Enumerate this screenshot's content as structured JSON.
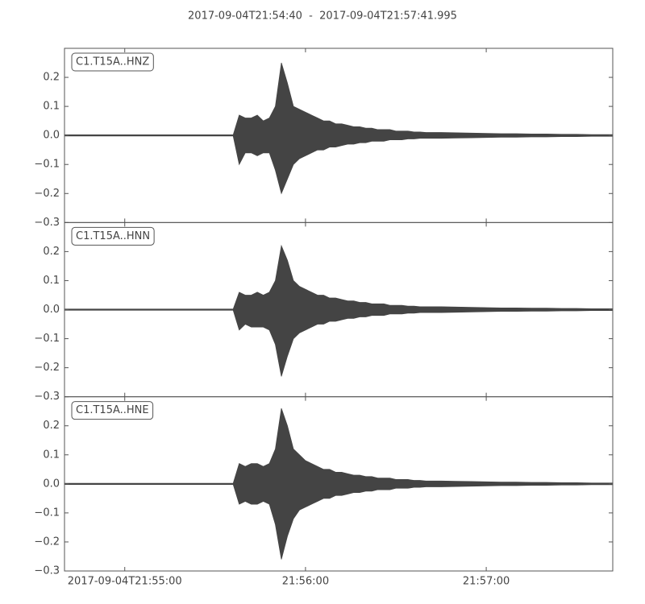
{
  "chart_data": {
    "type": "seismogram",
    "title": "2017-09-04T21:54:40  -  2017-09-04T21:57:41.995",
    "color": "#444444",
    "xlim": [
      "2017-09-04T21:54:40",
      "2017-09-04T21:57:41.995"
    ],
    "xticks": [
      "2017-09-04T21:55:00",
      {
        "value": "2017-09-04T21:56:00",
        "label": "21:56:00"
      },
      {
        "value": "2017-09-04T21:57:00",
        "label": "21:57:00"
      }
    ],
    "x": [
      "2017-09-04T21:54:40",
      "2017-09-04T21:54:55",
      "2017-09-04T21:55:10",
      "2017-09-04T21:55:25",
      "2017-09-04T21:55:36",
      "2017-09-04T21:55:38",
      "2017-09-04T21:55:40",
      "2017-09-04T21:55:42",
      "2017-09-04T21:55:44",
      "2017-09-04T21:55:46",
      "2017-09-04T21:55:48",
      "2017-09-04T21:55:50",
      "2017-09-04T21:55:52",
      "2017-09-04T21:55:54",
      "2017-09-04T21:55:56",
      "2017-09-04T21:55:58",
      "2017-09-04T21:56:00",
      "2017-09-04T21:56:02",
      "2017-09-04T21:56:04",
      "2017-09-04T21:56:06",
      "2017-09-04T21:56:08",
      "2017-09-04T21:56:10",
      "2017-09-04T21:56:12",
      "2017-09-04T21:56:14",
      "2017-09-04T21:56:16",
      "2017-09-04T21:56:18",
      "2017-09-04T21:56:20",
      "2017-09-04T21:56:22",
      "2017-09-04T21:56:24",
      "2017-09-04T21:56:26",
      "2017-09-04T21:56:28",
      "2017-09-04T21:56:30",
      "2017-09-04T21:56:32",
      "2017-09-04T21:56:34",
      "2017-09-04T21:56:36",
      "2017-09-04T21:56:38",
      "2017-09-04T21:56:40",
      "2017-09-04T21:56:45",
      "2017-09-04T21:56:50",
      "2017-09-04T21:56:55",
      "2017-09-04T21:57:00",
      "2017-09-04T21:57:05",
      "2017-09-04T21:57:10",
      "2017-09-04T21:57:15",
      "2017-09-04T21:57:20",
      "2017-09-04T21:57:25",
      "2017-09-04T21:57:30",
      "2017-09-04T21:57:35",
      "2017-09-04T21:57:40",
      "2017-09-04T21:57:41.995"
    ],
    "panels": [
      {
        "label": "C1.T15A..HNZ",
        "ylim": [
          -0.3,
          0.3
        ],
        "yticks": [
          {
            "value": -0.3,
            "label": "−0.3"
          },
          {
            "value": -0.2,
            "label": "−0.2"
          },
          {
            "value": -0.1,
            "label": "−0.1"
          },
          {
            "value": 0,
            "label": "0.0"
          },
          0.1,
          0.2
        ],
        "max": [
          0.002,
          0.002,
          0.002,
          0.002,
          0.002,
          0.07,
          0.06,
          0.06,
          0.07,
          0.05,
          0.06,
          0.1,
          0.25,
          0.18,
          0.1,
          0.09,
          0.08,
          0.07,
          0.06,
          0.05,
          0.05,
          0.04,
          0.04,
          0.035,
          0.03,
          0.03,
          0.025,
          0.025,
          0.02,
          0.02,
          0.02,
          0.015,
          0.015,
          0.015,
          0.012,
          0.012,
          0.01,
          0.01,
          0.009,
          0.008,
          0.007,
          0.006,
          0.006,
          0.005,
          0.005,
          0.004,
          0.004,
          0.003,
          0.003,
          0.003
        ],
        "min": [
          -0.002,
          -0.002,
          -0.002,
          -0.002,
          -0.002,
          -0.1,
          -0.06,
          -0.06,
          -0.07,
          -0.06,
          -0.06,
          -0.12,
          -0.2,
          -0.15,
          -0.1,
          -0.08,
          -0.07,
          -0.06,
          -0.05,
          -0.05,
          -0.04,
          -0.04,
          -0.035,
          -0.03,
          -0.03,
          -0.025,
          -0.025,
          -0.02,
          -0.02,
          -0.02,
          -0.015,
          -0.015,
          -0.015,
          -0.012,
          -0.012,
          -0.01,
          -0.01,
          -0.01,
          -0.009,
          -0.008,
          -0.007,
          -0.006,
          -0.006,
          -0.005,
          -0.005,
          -0.004,
          -0.004,
          -0.003,
          -0.003,
          -0.003
        ]
      },
      {
        "label": "C1.T15A..HNN",
        "ylim": [
          -0.3,
          0.3
        ],
        "yticks": [
          {
            "value": -0.3,
            "label": "−0.3"
          },
          {
            "value": -0.2,
            "label": "−0.2"
          },
          {
            "value": -0.1,
            "label": "−0.1"
          },
          {
            "value": 0,
            "label": "0.0"
          },
          0.1,
          0.2
        ],
        "max": [
          0.002,
          0.002,
          0.002,
          0.002,
          0.002,
          0.06,
          0.05,
          0.05,
          0.06,
          0.05,
          0.06,
          0.1,
          0.22,
          0.17,
          0.1,
          0.08,
          0.07,
          0.06,
          0.05,
          0.05,
          0.04,
          0.04,
          0.035,
          0.03,
          0.03,
          0.025,
          0.025,
          0.02,
          0.02,
          0.02,
          0.015,
          0.015,
          0.015,
          0.012,
          0.012,
          0.01,
          0.01,
          0.01,
          0.009,
          0.008,
          0.007,
          0.006,
          0.006,
          0.005,
          0.005,
          0.004,
          0.004,
          0.003,
          0.003,
          0.003
        ],
        "min": [
          -0.002,
          -0.002,
          -0.002,
          -0.002,
          -0.002,
          -0.07,
          -0.05,
          -0.06,
          -0.06,
          -0.06,
          -0.07,
          -0.12,
          -0.23,
          -0.16,
          -0.1,
          -0.08,
          -0.07,
          -0.06,
          -0.05,
          -0.05,
          -0.04,
          -0.04,
          -0.035,
          -0.03,
          -0.03,
          -0.025,
          -0.025,
          -0.02,
          -0.02,
          -0.02,
          -0.015,
          -0.015,
          -0.015,
          -0.012,
          -0.012,
          -0.01,
          -0.01,
          -0.01,
          -0.009,
          -0.008,
          -0.007,
          -0.006,
          -0.006,
          -0.005,
          -0.005,
          -0.004,
          -0.004,
          -0.003,
          -0.003,
          -0.003
        ]
      },
      {
        "label": "C1.T15A..HNE",
        "ylim": [
          -0.3,
          0.3
        ],
        "yticks": [
          {
            "value": -0.3,
            "label": "−0.3"
          },
          {
            "value": -0.2,
            "label": "−0.2"
          },
          {
            "value": -0.1,
            "label": "−0.1"
          },
          {
            "value": 0,
            "label": "0.0"
          },
          0.1,
          0.2
        ],
        "max": [
          0.002,
          0.002,
          0.002,
          0.002,
          0.002,
          0.07,
          0.06,
          0.07,
          0.07,
          0.06,
          0.07,
          0.12,
          0.26,
          0.2,
          0.12,
          0.1,
          0.08,
          0.07,
          0.06,
          0.05,
          0.05,
          0.04,
          0.04,
          0.035,
          0.03,
          0.03,
          0.025,
          0.025,
          0.02,
          0.02,
          0.02,
          0.015,
          0.015,
          0.015,
          0.012,
          0.012,
          0.01,
          0.01,
          0.009,
          0.008,
          0.007,
          0.006,
          0.006,
          0.005,
          0.005,
          0.004,
          0.004,
          0.003,
          0.003,
          0.003
        ],
        "min": [
          -0.002,
          -0.002,
          -0.002,
          -0.002,
          -0.002,
          -0.07,
          -0.06,
          -0.07,
          -0.07,
          -0.06,
          -0.07,
          -0.14,
          -0.26,
          -0.18,
          -0.12,
          -0.09,
          -0.08,
          -0.07,
          -0.06,
          -0.05,
          -0.05,
          -0.04,
          -0.04,
          -0.035,
          -0.03,
          -0.03,
          -0.025,
          -0.025,
          -0.02,
          -0.02,
          -0.02,
          -0.015,
          -0.015,
          -0.015,
          -0.012,
          -0.012,
          -0.01,
          -0.01,
          -0.009,
          -0.008,
          -0.007,
          -0.006,
          -0.006,
          -0.005,
          -0.005,
          -0.004,
          -0.004,
          -0.003,
          -0.003,
          -0.003
        ]
      }
    ]
  }
}
